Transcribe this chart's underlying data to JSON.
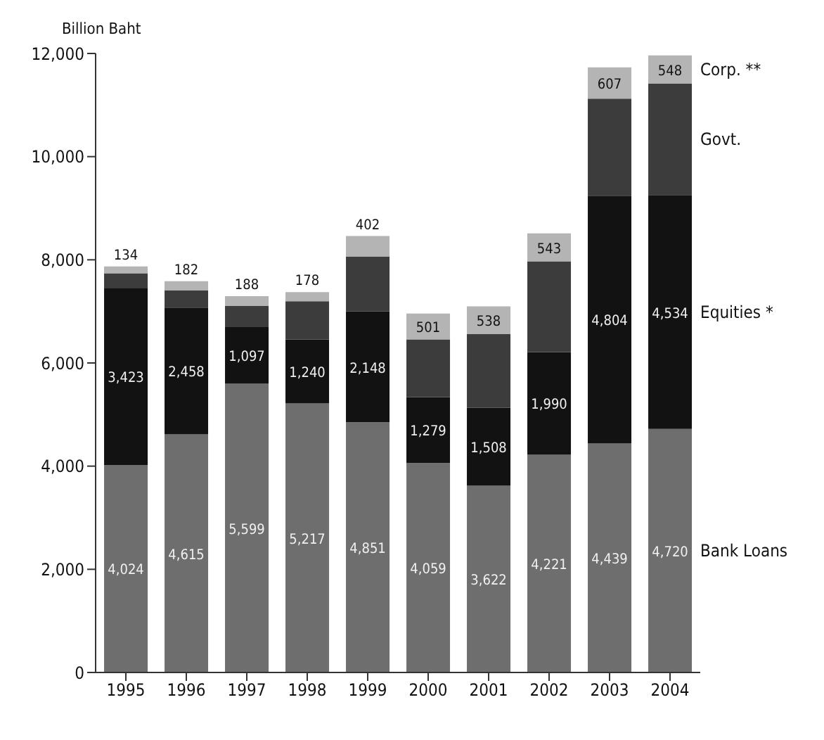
{
  "chart_data": {
    "type": "bar",
    "stacked": true,
    "ylabel": "Billion Baht",
    "categories": [
      "1995",
      "1996",
      "1997",
      "1998",
      "1999",
      "2000",
      "2001",
      "2002",
      "2003",
      "2004"
    ],
    "ylim": [
      0,
      12000
    ],
    "yticks": [
      {
        "value": 0,
        "label": "0"
      },
      {
        "value": 2000,
        "label": "2,000"
      },
      {
        "value": 4000,
        "label": "4,000"
      },
      {
        "value": 6000,
        "label": "6,000"
      },
      {
        "value": 8000,
        "label": "8,000"
      },
      {
        "value": 10000,
        "label": "10,000"
      },
      {
        "value": 12000,
        "label": "12,000"
      }
    ],
    "series": [
      {
        "name": "Bank Loans",
        "color": "#6e6e6e",
        "values": [
          4024,
          4615,
          5599,
          5217,
          4851,
          4059,
          3622,
          4221,
          4439,
          4720
        ],
        "value_labels": [
          "4,024",
          "4,615",
          "5,599",
          "5,217",
          "4,851",
          "4,059",
          "3,622",
          "4,221",
          "4,439",
          "4,720"
        ]
      },
      {
        "name": "Equities *",
        "color": "#121212",
        "values": [
          3423,
          2458,
          1097,
          1240,
          2148,
          1279,
          1508,
          1990,
          4804,
          4534
        ],
        "value_labels": [
          "3,423",
          "2,458",
          "1,097",
          "1,240",
          "2,148",
          "1,279",
          "1,508",
          "1,990",
          "4,804",
          "4,534"
        ]
      },
      {
        "name": "Govt.",
        "color": "#3c3c3c",
        "values": [
          290,
          330,
          410,
          740,
          1060,
          1120,
          1430,
          1760,
          1880,
          2160
        ]
      },
      {
        "name": "Corp. **",
        "color": "#b4b4b4",
        "values": [
          134,
          182,
          188,
          178,
          402,
          501,
          538,
          543,
          607,
          548
        ],
        "value_labels": [
          "134",
          "182",
          "188",
          "178",
          "402",
          "501",
          "538",
          "543",
          "607",
          "548"
        ]
      }
    ]
  }
}
